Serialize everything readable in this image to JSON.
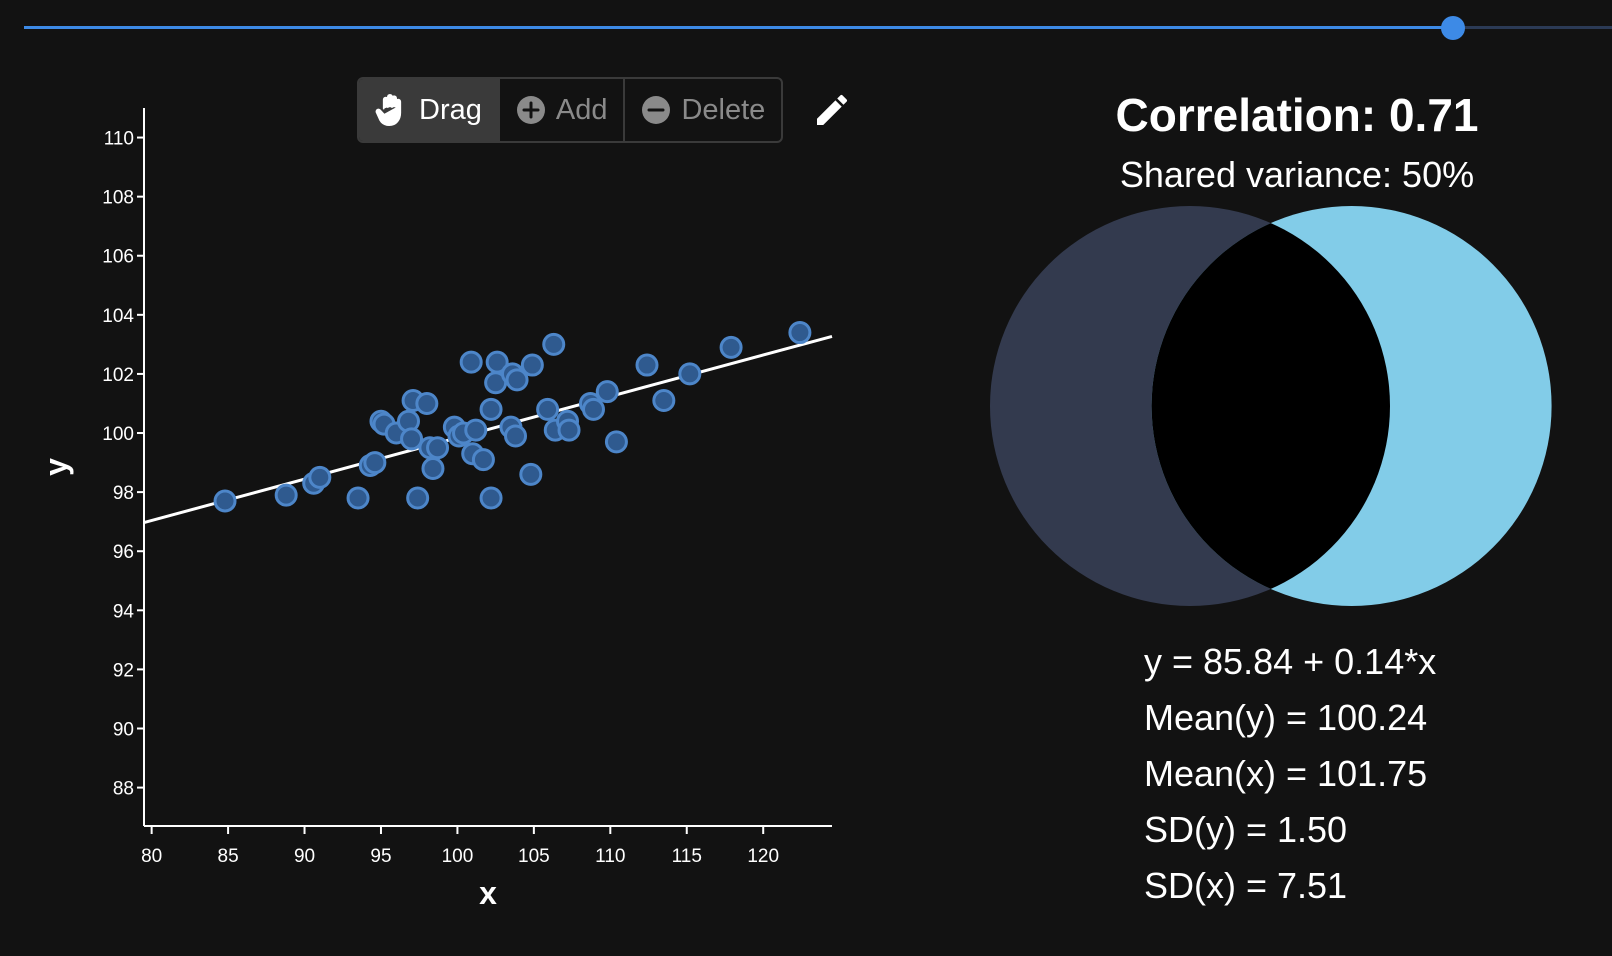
{
  "slider": {
    "value_fraction": 0.9
  },
  "toolbar": {
    "drag_label": "Drag",
    "add_label": "Add",
    "delete_label": "Delete",
    "drag_icon": "hand-icon",
    "add_icon": "plus-circle-icon",
    "delete_icon": "minus-circle-icon",
    "edit_icon": "pencil-icon",
    "active_tool": "drag"
  },
  "colors": {
    "background": "#121212",
    "accent": "#3d8ae6",
    "point_fill": "#2f5a8f",
    "point_stroke": "#4d86c9",
    "venn_left": "#333a4e",
    "venn_right": "#82cce8",
    "venn_overlap": "#000000"
  },
  "chart_data": {
    "type": "scatter",
    "xlabel": "x",
    "ylabel": "y",
    "xlim": [
      79.5,
      124.5
    ],
    "ylim": [
      86.7,
      111.0
    ],
    "xticks": [
      80,
      85,
      90,
      95,
      100,
      105,
      110,
      115,
      120
    ],
    "yticks": [
      88,
      90,
      92,
      94,
      96,
      98,
      100,
      102,
      104,
      106,
      108,
      110
    ],
    "regression": {
      "intercept": 85.84,
      "slope": 0.14
    },
    "points": [
      [
        84.8,
        97.7
      ],
      [
        88.8,
        97.9
      ],
      [
        90.6,
        98.3
      ],
      [
        91.0,
        98.5
      ],
      [
        93.5,
        97.8
      ],
      [
        94.3,
        98.9
      ],
      [
        94.6,
        99.0
      ],
      [
        95.0,
        100.4
      ],
      [
        95.2,
        100.3
      ],
      [
        96.0,
        100.0
      ],
      [
        96.8,
        100.4
      ],
      [
        97.0,
        99.8
      ],
      [
        97.1,
        101.1
      ],
      [
        97.4,
        97.8
      ],
      [
        98.0,
        101.0
      ],
      [
        98.2,
        99.5
      ],
      [
        98.4,
        98.8
      ],
      [
        98.7,
        99.5
      ],
      [
        99.8,
        100.2
      ],
      [
        100.1,
        99.9
      ],
      [
        100.4,
        100.0
      ],
      [
        100.9,
        102.4
      ],
      [
        101.0,
        99.3
      ],
      [
        101.2,
        100.1
      ],
      [
        101.7,
        99.1
      ],
      [
        102.2,
        100.8
      ],
      [
        102.2,
        97.8
      ],
      [
        102.5,
        101.7
      ],
      [
        102.6,
        102.4
      ],
      [
        103.5,
        100.2
      ],
      [
        103.6,
        102.0
      ],
      [
        103.8,
        99.9
      ],
      [
        103.9,
        101.8
      ],
      [
        104.8,
        98.6
      ],
      [
        104.9,
        102.3
      ],
      [
        105.9,
        100.8
      ],
      [
        106.3,
        103.0
      ],
      [
        106.4,
        100.1
      ],
      [
        107.2,
        100.4
      ],
      [
        107.3,
        100.1
      ],
      [
        108.7,
        101.0
      ],
      [
        108.9,
        100.8
      ],
      [
        109.8,
        101.4
      ],
      [
        110.4,
        99.7
      ],
      [
        112.4,
        102.3
      ],
      [
        113.5,
        101.1
      ],
      [
        115.2,
        102.0
      ],
      [
        117.9,
        102.9
      ],
      [
        122.4,
        103.4
      ]
    ]
  },
  "summary": {
    "correlation_text": "Correlation: 0.71",
    "shared_variance_text": "Shared variance: 50%",
    "correlation": 0.71,
    "shared_variance": 0.5
  },
  "stats": {
    "equation": "y = 85.84 + 0.14*x",
    "mean_y": "Mean(y) = 100.24",
    "mean_x": "Mean(x) = 101.75",
    "sd_y": "SD(y) = 1.50",
    "sd_x": "SD(x) = 7.51"
  }
}
